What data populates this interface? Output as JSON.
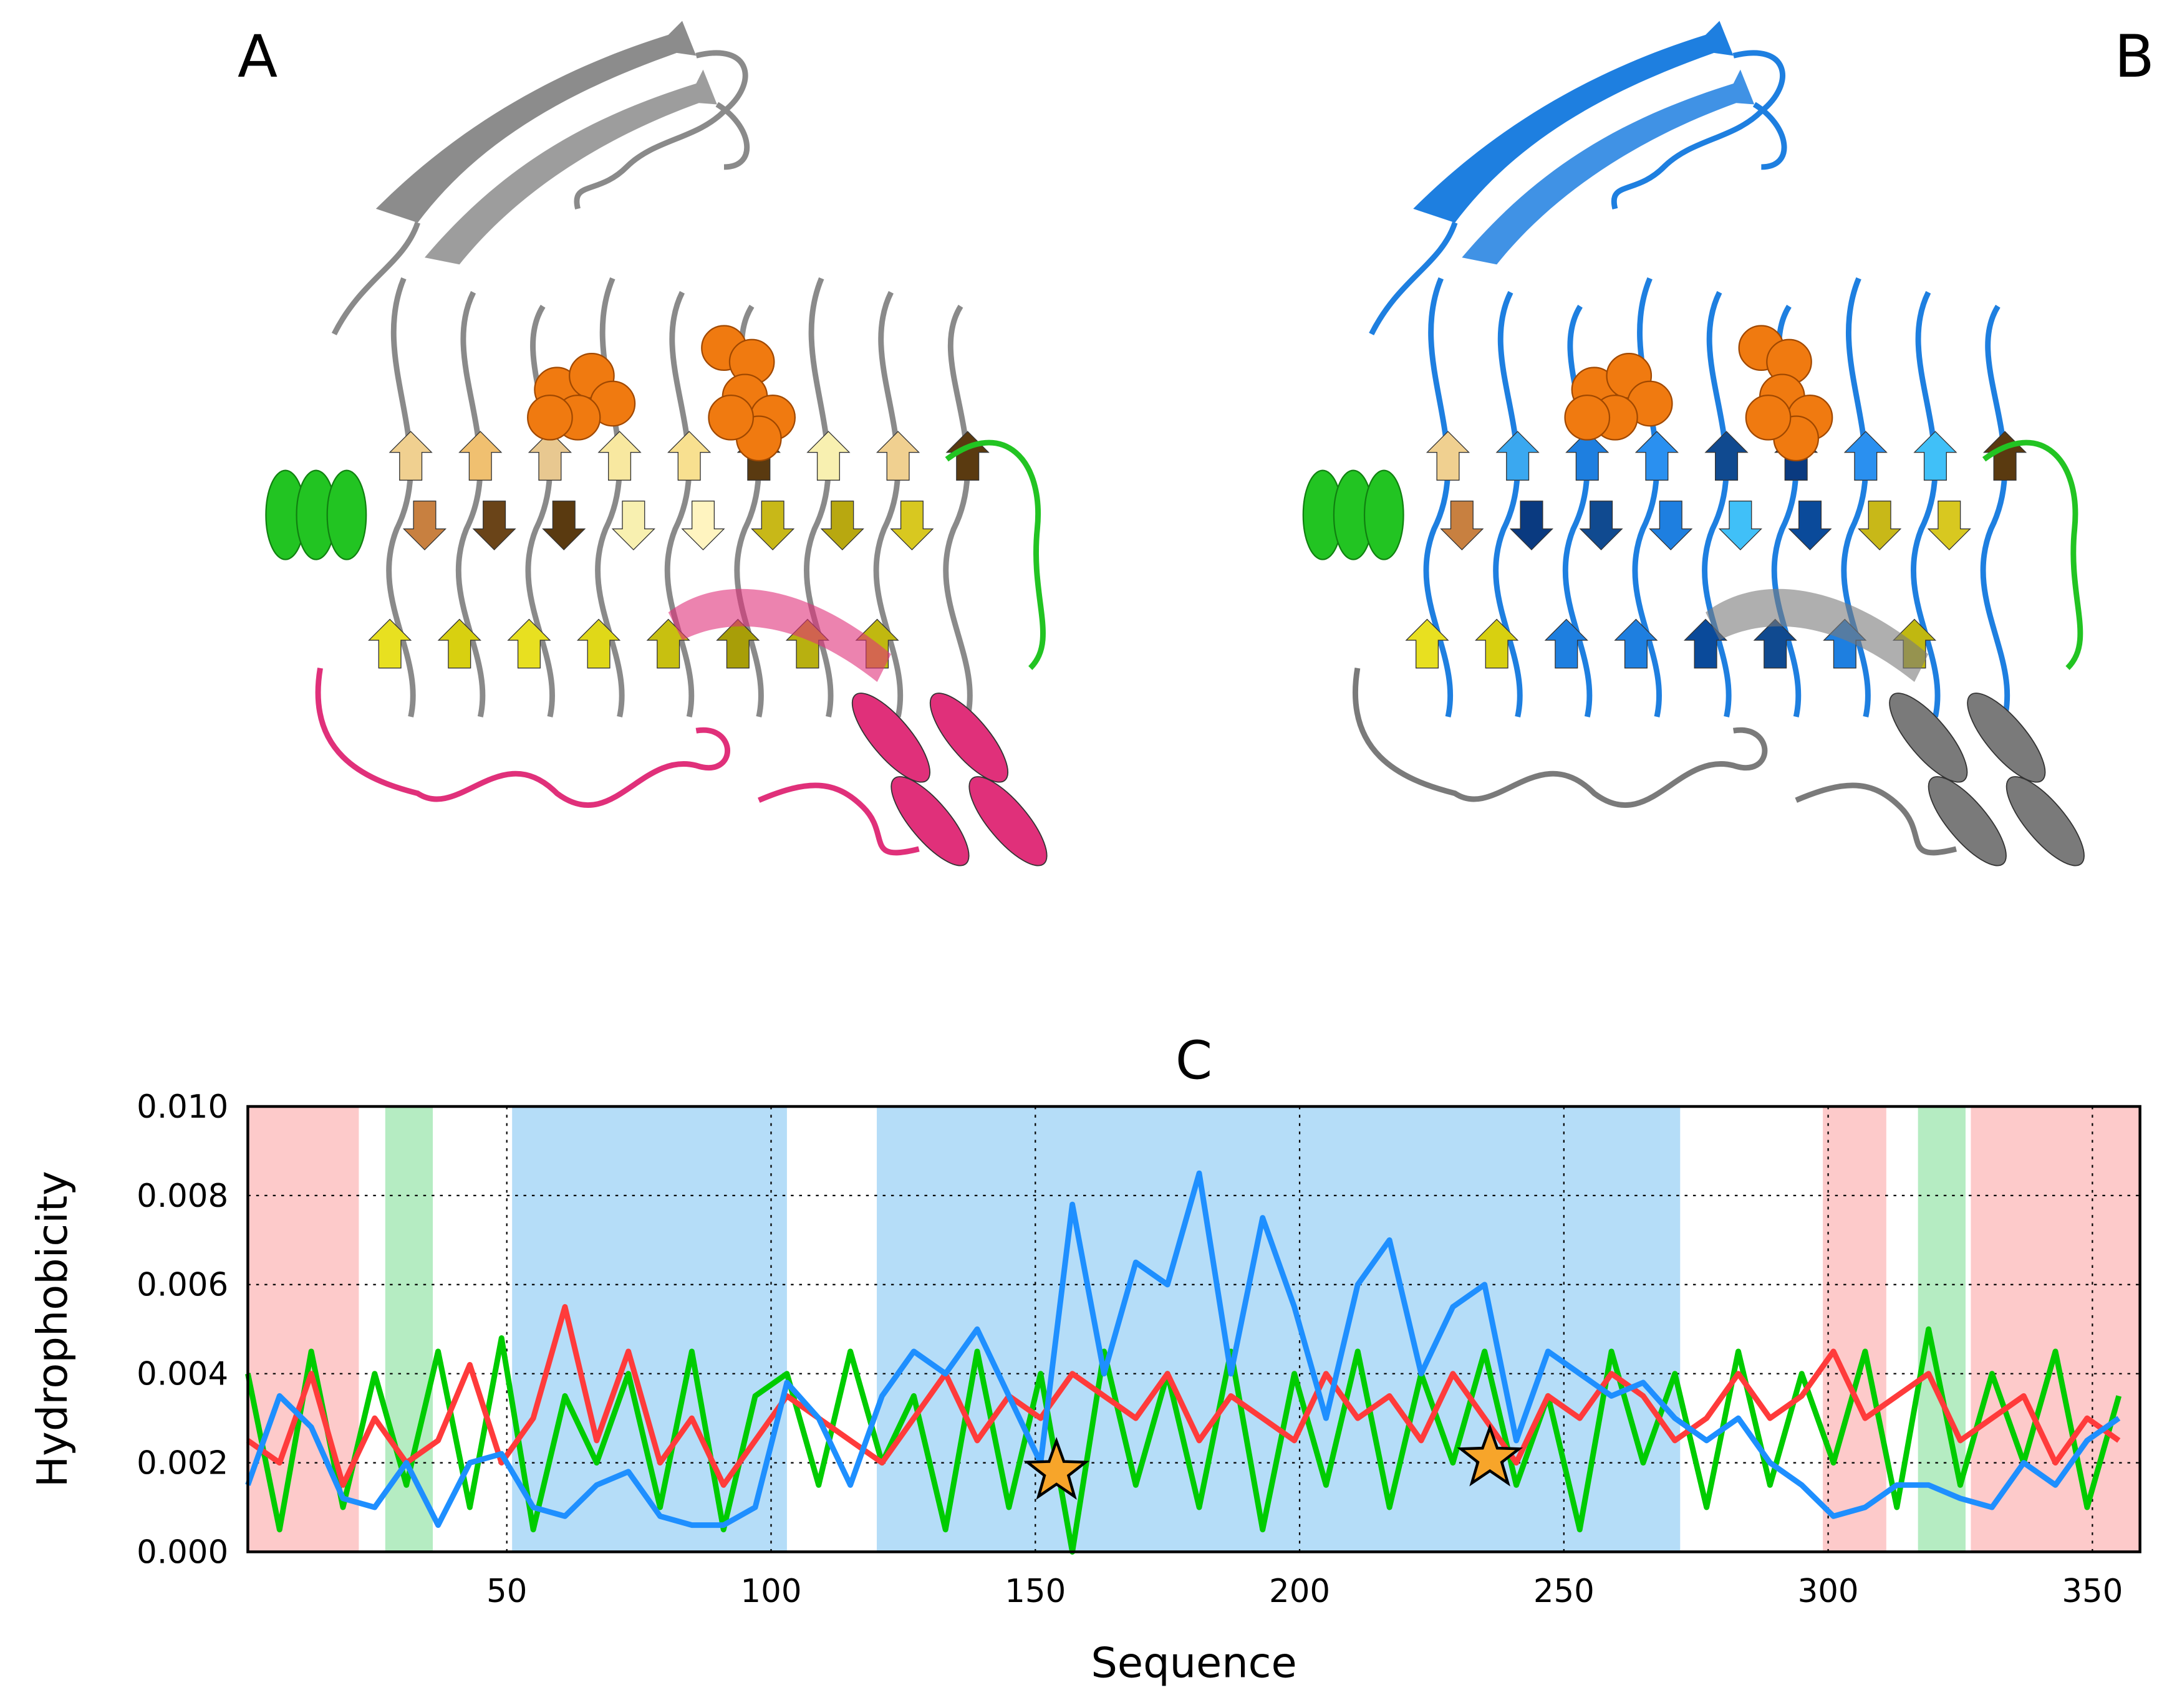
{
  "panels": {
    "a_label": "A",
    "b_label": "B"
  },
  "chart_data": {
    "type": "line",
    "title": "C",
    "x_label": "Sequence",
    "y_label": "Hydrophobicity",
    "xlim": [
      1,
      359
    ],
    "ylim": [
      0,
      0.01
    ],
    "xticks": [
      50,
      100,
      150,
      200,
      250,
      300,
      350
    ],
    "yticks": [
      {
        "value": 0,
        "label": "0.000"
      },
      {
        "value": 0.002,
        "label": "0.002"
      },
      {
        "value": 0.004,
        "label": "0.004"
      },
      {
        "value": 0.006,
        "label": "0.006"
      },
      {
        "value": 0.008,
        "label": "0.008"
      },
      {
        "value": 0.01,
        "label": "0.010"
      }
    ],
    "grid": true,
    "regions": [
      {
        "start": 1,
        "end": 22,
        "color": "#fdcaca"
      },
      {
        "start": 27,
        "end": 36,
        "color": "#b5ecc2"
      },
      {
        "start": 51,
        "end": 103,
        "color": "#b5ddf8"
      },
      {
        "start": 120,
        "end": 272,
        "color": "#b5ddf8"
      },
      {
        "start": 299,
        "end": 311,
        "color": "#fdcaca"
      },
      {
        "start": 317,
        "end": 326,
        "color": "#b5ecc2"
      },
      {
        "start": 327,
        "end": 359,
        "color": "#fdcaca"
      }
    ],
    "x": [
      1,
      7,
      13,
      19,
      25,
      31,
      37,
      43,
      49,
      55,
      61,
      67,
      73,
      79,
      85,
      91,
      97,
      103,
      109,
      115,
      121,
      127,
      133,
      139,
      145,
      151,
      157,
      163,
      169,
      175,
      181,
      187,
      193,
      199,
      205,
      211,
      217,
      223,
      229,
      235,
      241,
      247,
      253,
      259,
      265,
      271,
      277,
      283,
      289,
      295,
      301,
      307,
      313,
      319,
      325,
      331,
      337,
      343,
      349,
      355
    ],
    "series": [
      {
        "color": "#00cc00",
        "values": [
          0.004,
          0.0005,
          0.0045,
          0.001,
          0.004,
          0.0015,
          0.0045,
          0.001,
          0.0048,
          0.0005,
          0.0035,
          0.002,
          0.004,
          0.001,
          0.0045,
          0.0005,
          0.0035,
          0.004,
          0.0015,
          0.0045,
          0.002,
          0.0035,
          0.0005,
          0.0045,
          0.001,
          0.004,
          0,
          0.0045,
          0.0015,
          0.004,
          0.001,
          0.0045,
          0.0005,
          0.004,
          0.0015,
          0.0045,
          0.001,
          0.004,
          0.002,
          0.0045,
          0.0015,
          0.0035,
          0.0005,
          0.0045,
          0.002,
          0.004,
          0.001,
          0.0045,
          0.0015,
          0.004,
          0.002,
          0.0045,
          0.001,
          0.005,
          0.0015,
          0.004,
          0.002,
          0.0045,
          0.001,
          0.0035
        ]
      },
      {
        "color": "#ff3b3b",
        "values": [
          0.0025,
          0.002,
          0.004,
          0.0015,
          0.003,
          0.002,
          0.0025,
          0.0042,
          0.002,
          0.003,
          0.0055,
          0.0025,
          0.0045,
          0.002,
          0.003,
          0.0015,
          0.0025,
          0.0035,
          0.003,
          0.0025,
          0.002,
          0.003,
          0.004,
          0.0025,
          0.0035,
          0.003,
          0.004,
          0.0035,
          0.003,
          0.004,
          0.0025,
          0.0035,
          0.003,
          0.0025,
          0.004,
          0.003,
          0.0035,
          0.0025,
          0.004,
          0.003,
          0.002,
          0.0035,
          0.003,
          0.004,
          0.0035,
          0.0025,
          0.003,
          0.004,
          0.003,
          0.0035,
          0.0045,
          0.003,
          0.0035,
          0.004,
          0.0025,
          0.003,
          0.0035,
          0.002,
          0.003,
          0.0025
        ]
      },
      {
        "color": "#1e8fff",
        "values": [
          0.0015,
          0.0035,
          0.0028,
          0.0012,
          0.001,
          0.002,
          0.0006,
          0.002,
          0.0022,
          0.001,
          0.0008,
          0.0015,
          0.0018,
          0.0008,
          0.0006,
          0.0006,
          0.001,
          0.0038,
          0.003,
          0.0015,
          0.0035,
          0.0045,
          0.004,
          0.005,
          0.0035,
          0.002,
          0.0078,
          0.004,
          0.0065,
          0.006,
          0.0085,
          0.004,
          0.0075,
          0.0055,
          0.003,
          0.006,
          0.007,
          0.004,
          0.0055,
          0.006,
          0.0025,
          0.0045,
          0.004,
          0.0035,
          0.0038,
          0.003,
          0.0025,
          0.003,
          0.002,
          0.0015,
          0.0008,
          0.001,
          0.0015,
          0.0015,
          0.0012,
          0.001,
          0.002,
          0.0015,
          0.0025,
          0.003
        ]
      }
    ],
    "markers": {
      "x": [
        154,
        236
      ],
      "values": [
        0.0018,
        0.0021
      ],
      "color": "#f7a52a"
    }
  }
}
